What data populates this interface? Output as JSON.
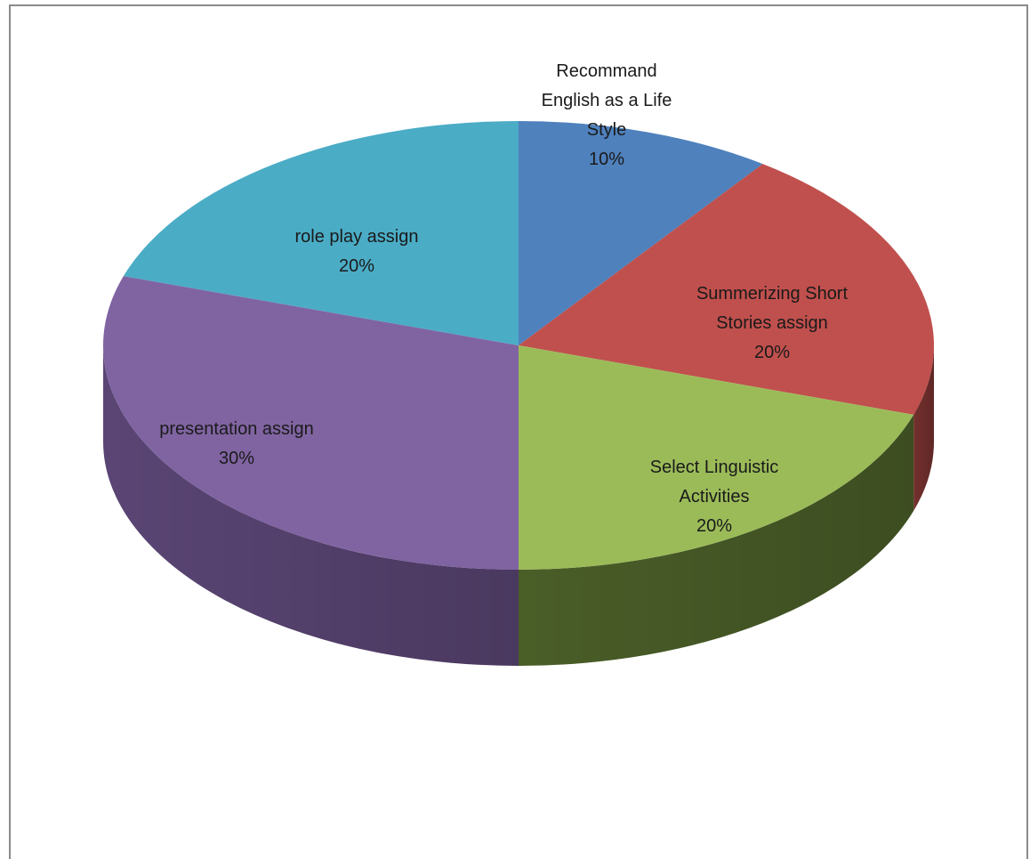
{
  "chart_data": {
    "type": "pie",
    "title": "",
    "legend": "none",
    "style": "3d",
    "slices": [
      {
        "label": "Recommand English as a Life Style",
        "label_lines": [
          "Recommand",
          "English as a Life",
          "Style"
        ],
        "percent_label": "10%",
        "value": 10,
        "color": "#4f81bd",
        "side_color": "#2f4d72"
      },
      {
        "label": "Summerizing Short Stories assign",
        "label_lines": [
          "Summerizing Short",
          "Stories assign"
        ],
        "percent_label": "20%",
        "value": 20,
        "color": "#c0504d",
        "side_color": "#74302e"
      },
      {
        "label": "Select Linguistic Activities",
        "label_lines": [
          "Select Linguistic",
          "Activities"
        ],
        "percent_label": "20%",
        "value": 20,
        "color": "#9bbb59",
        "side_color": "#4a5e28"
      },
      {
        "label": "presentation assign",
        "label_lines": [
          "presentation assign"
        ],
        "percent_label": "30%",
        "value": 30,
        "color": "#8064a2",
        "side_color": "#5a4574"
      },
      {
        "label": "role play assign",
        "label_lines": [
          "role play assign"
        ],
        "percent_label": "20%",
        "value": 20,
        "color": "#4bacc6",
        "side_color": "#2b6c7c"
      }
    ]
  }
}
